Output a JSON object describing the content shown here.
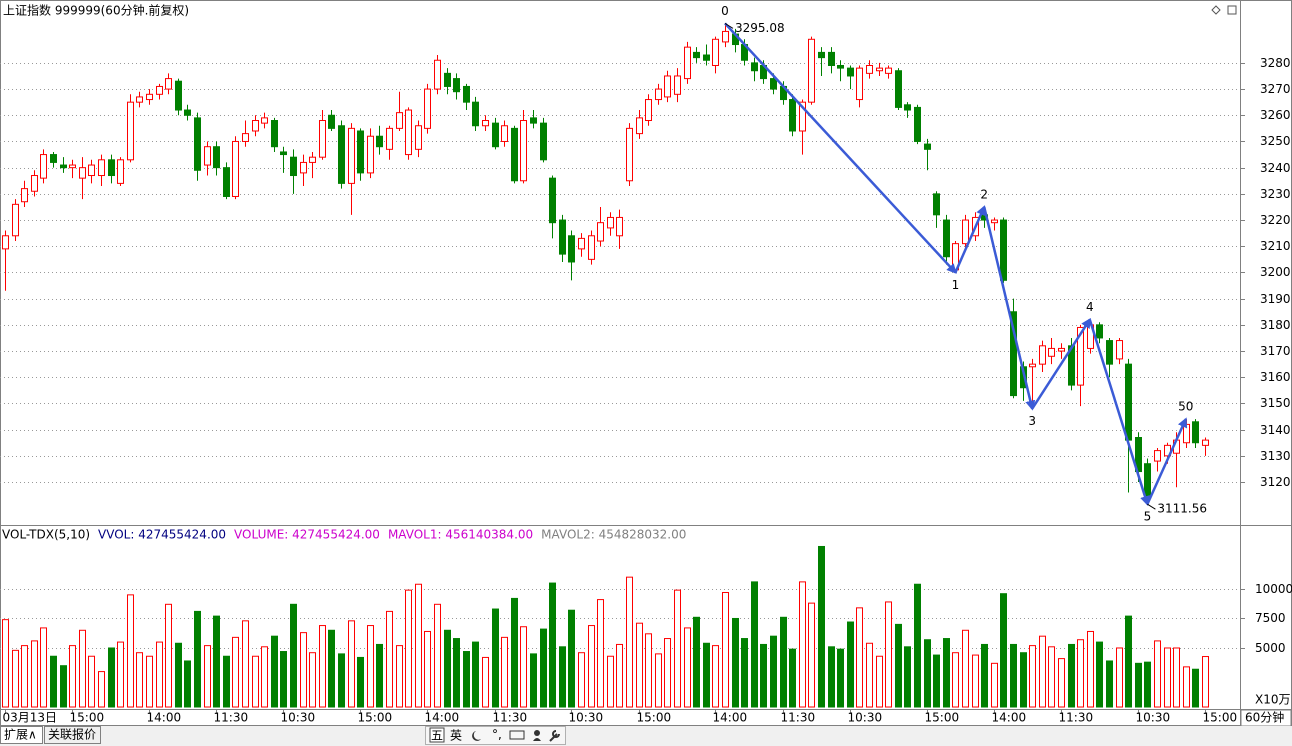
{
  "window": {
    "title": "上证指数 999999(60分钟.前复权)"
  },
  "chart_data": [
    {
      "type": "candlestick",
      "up_color": "#ff0000",
      "down_color": "#008000",
      "wave_color": "#3b5bd6",
      "ylim": [
        3103.6,
        3304
      ],
      "yticks": [
        3120,
        3130,
        3140,
        3150,
        3160,
        3170,
        3180,
        3190,
        3200,
        3210,
        3220,
        3230,
        3240,
        3250,
        3260,
        3270,
        3280
      ],
      "grid": true,
      "ohlc": [
        [
          3209,
          3216,
          3193,
          3214
        ],
        [
          3214,
          3228,
          3212,
          3226
        ],
        [
          3227,
          3235,
          3225,
          3232
        ],
        [
          3231,
          3239,
          3229,
          3237
        ],
        [
          3236,
          3247,
          3234,
          3245
        ],
        [
          3245,
          3246,
          3240,
          3242
        ],
        [
          3241,
          3244,
          3238,
          3240
        ],
        [
          3240,
          3243,
          3236,
          3241
        ],
        [
          3236,
          3244,
          3228,
          3240
        ],
        [
          3237,
          3243,
          3234,
          3241
        ],
        [
          3237,
          3245,
          3233,
          3243
        ],
        [
          3243,
          3245,
          3234,
          3237
        ],
        [
          3234,
          3244,
          3233,
          3243
        ],
        [
          3243,
          3268,
          3242,
          3265
        ],
        [
          3265,
          3269,
          3263,
          3267
        ],
        [
          3266,
          3270,
          3264,
          3268
        ],
        [
          3268,
          3272,
          3266,
          3271
        ],
        [
          3270,
          3276,
          3268,
          3274
        ],
        [
          3273,
          3274,
          3260,
          3262
        ],
        [
          3262,
          3264,
          3258,
          3260
        ],
        [
          3259,
          3261,
          3235,
          3239
        ],
        [
          3241,
          3250,
          3237,
          3248
        ],
        [
          3248,
          3250,
          3237,
          3240
        ],
        [
          3240,
          3242,
          3228,
          3229
        ],
        [
          3229,
          3252,
          3228,
          3250
        ],
        [
          3250,
          3258,
          3248,
          3253
        ],
        [
          3254,
          3260,
          3252,
          3258
        ],
        [
          3257,
          3261,
          3255,
          3259
        ],
        [
          3258,
          3259,
          3246,
          3248
        ],
        [
          3246,
          3248,
          3238,
          3245
        ],
        [
          3244,
          3247,
          3230,
          3237
        ],
        [
          3238,
          3245,
          3233,
          3242
        ],
        [
          3242,
          3246,
          3236,
          3244
        ],
        [
          3244,
          3262,
          3243,
          3258
        ],
        [
          3260,
          3262,
          3254,
          3255
        ],
        [
          3256,
          3258,
          3232,
          3234
        ],
        [
          3234,
          3257,
          3222,
          3255
        ],
        [
          3254,
          3255,
          3235,
          3238
        ],
        [
          3238,
          3255,
          3236,
          3252
        ],
        [
          3252,
          3256,
          3245,
          3248
        ],
        [
          3247,
          3256,
          3243,
          3255
        ],
        [
          3255,
          3269,
          3254,
          3261
        ],
        [
          3245,
          3263,
          3243,
          3262
        ],
        [
          3247,
          3258,
          3244,
          3256
        ],
        [
          3255,
          3272,
          3253,
          3270
        ],
        [
          3270,
          3283,
          3268,
          3281
        ],
        [
          3276,
          3278,
          3268,
          3271
        ],
        [
          3274,
          3276,
          3266,
          3269
        ],
        [
          3271,
          3272,
          3262,
          3265
        ],
        [
          3265,
          3267,
          3254,
          3256
        ],
        [
          3256,
          3260,
          3254,
          3258
        ],
        [
          3257,
          3259,
          3247,
          3248
        ],
        [
          3250,
          3258,
          3248,
          3256
        ],
        [
          3255,
          3256,
          3234,
          3235
        ],
        [
          3235,
          3262,
          3234,
          3258
        ],
        [
          3259,
          3262,
          3255,
          3257
        ],
        [
          3257,
          3259,
          3242,
          3243
        ],
        [
          3236,
          3237,
          3213,
          3219
        ],
        [
          3220,
          3222,
          3204,
          3207
        ],
        [
          3214,
          3216,
          3197,
          3204
        ],
        [
          3209,
          3215,
          3206,
          3213
        ],
        [
          3205,
          3216,
          3203,
          3214
        ],
        [
          3212,
          3225,
          3210,
          3219
        ],
        [
          3217,
          3223,
          3214,
          3221
        ],
        [
          3214,
          3224,
          3209,
          3221
        ],
        [
          3235,
          3257,
          3233,
          3255
        ],
        [
          3253,
          3262,
          3251,
          3259
        ],
        [
          3258,
          3268,
          3256,
          3266
        ],
        [
          3266,
          3272,
          3264,
          3270
        ],
        [
          3267,
          3277,
          3265,
          3275
        ],
        [
          3268,
          3278,
          3265,
          3275
        ],
        [
          3274,
          3288,
          3272,
          3286
        ],
        [
          3284,
          3286,
          3280,
          3282
        ],
        [
          3283,
          3287,
          3279,
          3281
        ],
        [
          3279,
          3290,
          3276,
          3289
        ],
        [
          3288,
          3295.08,
          3286,
          3292
        ],
        [
          3291,
          3293,
          3284,
          3287
        ],
        [
          3287,
          3289,
          3279,
          3281
        ],
        [
          3280,
          3282,
          3273,
          3277
        ],
        [
          3279,
          3281,
          3272,
          3274
        ],
        [
          3274,
          3276,
          3268,
          3270
        ],
        [
          3271,
          3273,
          3264,
          3266
        ],
        [
          3266,
          3268,
          3252,
          3254
        ],
        [
          3254,
          3266,
          3245,
          3265
        ],
        [
          3265,
          3290,
          3264,
          3289
        ],
        [
          3284,
          3286,
          3275,
          3282
        ],
        [
          3284,
          3286,
          3276,
          3279
        ],
        [
          3279,
          3281,
          3273,
          3278
        ],
        [
          3278,
          3279,
          3270,
          3275
        ],
        [
          3266,
          3279,
          3263,
          3278
        ],
        [
          3276,
          3281,
          3274,
          3279
        ],
        [
          3277,
          3280,
          3275,
          3278
        ],
        [
          3276,
          3279,
          3274,
          3278
        ],
        [
          3277,
          3278,
          3262,
          3263
        ],
        [
          3264,
          3265,
          3259,
          3262
        ],
        [
          3263,
          3264,
          3249,
          3250
        ],
        [
          3249,
          3251,
          3239,
          3247
        ],
        [
          3230,
          3231,
          3217,
          3222
        ],
        [
          3220,
          3222,
          3203,
          3206
        ],
        [
          3201,
          3212,
          3200,
          3211
        ],
        [
          3211,
          3222,
          3209,
          3220
        ],
        [
          3214,
          3223,
          3212,
          3221
        ],
        [
          3222,
          3225,
          3217,
          3220
        ],
        [
          3219,
          3221,
          3216,
          3220
        ],
        [
          3220,
          3221,
          3196,
          3197
        ],
        [
          3185,
          3190,
          3152,
          3153
        ],
        [
          3164,
          3166,
          3151,
          3156
        ],
        [
          3164,
          3167,
          3148,
          3165
        ],
        [
          3165,
          3174,
          3162,
          3172
        ],
        [
          3168,
          3175,
          3165,
          3171
        ],
        [
          3170,
          3173,
          3167,
          3171
        ],
        [
          3172,
          3175,
          3155,
          3157
        ],
        [
          3157,
          3180,
          3149,
          3179
        ],
        [
          3171,
          3182,
          3169,
          3180
        ],
        [
          3180,
          3181,
          3173,
          3175
        ],
        [
          3174,
          3175,
          3160,
          3165
        ],
        [
          3167,
          3175,
          3165,
          3174
        ],
        [
          3165,
          3167,
          3116,
          3136
        ],
        [
          3137,
          3139,
          3120,
          3124
        ],
        [
          3127,
          3129,
          3111.56,
          3114
        ],
        [
          3128,
          3133,
          3124,
          3132
        ],
        [
          3130,
          3135,
          3127,
          3134
        ],
        [
          3131,
          3139,
          3118,
          3136
        ],
        [
          3135,
          3144,
          3133,
          3142
        ],
        [
          3143,
          3144,
          3133,
          3135
        ],
        [
          3134,
          3137,
          3130,
          3136
        ]
      ],
      "waves": [
        {
          "label": "0",
          "index": 75,
          "value": 3295.08
        },
        {
          "label": "1",
          "index": 99,
          "value": 3200
        },
        {
          "label": "2",
          "index": 102,
          "value": 3225
        },
        {
          "label": "3",
          "index": 107,
          "value": 3148
        },
        {
          "label": "4",
          "index": 113,
          "value": 3182
        },
        {
          "label": "5",
          "index": 119,
          "value": 3111.56
        },
        {
          "label": "50",
          "index": 123,
          "value": 3144
        }
      ],
      "extreme_labels": [
        {
          "index": 75,
          "value": 3295.08,
          "label": "3295.08"
        },
        {
          "index": 119,
          "value": 3111.56,
          "label": "3111.56"
        }
      ]
    },
    {
      "type": "bar",
      "ylim": [
        0,
        15250
      ],
      "yticks": [
        5000,
        7500,
        10000
      ],
      "grid": true,
      "unit_label": "X10万",
      "legend": [
        {
          "text": "VOL-TDX(5,10)",
          "color": "#000000"
        },
        {
          "text": "VVOL: 427455424.00",
          "color": "#000080"
        },
        {
          "text": "VOLUME: 427455424.00",
          "color": "#cc00cc"
        },
        {
          "text": "MAVOL1: 456140384.00",
          "color": "#cc00cc"
        },
        {
          "text": "MAVOL2: 454828032.00",
          "color": "#808080"
        }
      ],
      "values": [
        7400,
        4800,
        5200,
        5600,
        6700,
        4300,
        3500,
        5200,
        6500,
        4300,
        3000,
        5000,
        5500,
        9500,
        4600,
        4300,
        5500,
        8700,
        5400,
        3900,
        8100,
        5200,
        7700,
        4300,
        5900,
        7300,
        4300,
        5100,
        6000,
        4700,
        8700,
        6300,
        4600,
        6900,
        6500,
        4500,
        7300,
        4200,
        6900,
        5300,
        8100,
        5200,
        9900,
        10400,
        6400,
        8700,
        6500,
        5800,
        4700,
        5500,
        4200,
        8300,
        5900,
        9200,
        6800,
        4500,
        6600,
        10500,
        5100,
        8200,
        4600,
        6900,
        9100,
        4300,
        5300,
        11000,
        7100,
        6200,
        4500,
        5800,
        9900,
        6700,
        7600,
        5400,
        5200,
        9700,
        7500,
        5800,
        10600,
        5300,
        6000,
        7600,
        4900,
        10600,
        8800,
        13600,
        5100,
        4900,
        7200,
        8400,
        5400,
        4300,
        8900,
        7000,
        5100,
        10400,
        5700,
        4400,
        5800,
        4600,
        6500,
        4400,
        5300,
        3700,
        9600,
        5300,
        4600,
        5200,
        6000,
        5100,
        4100,
        5300,
        5700,
        6400,
        5500,
        3900,
        5000,
        7700,
        3700,
        3800,
        5600,
        5000,
        5000,
        3400,
        3200,
        4275
      ],
      "categories": [
        "03月13日",
        null,
        null,
        null,
        null,
        null,
        null,
        "15:00",
        null,
        null,
        null,
        null,
        null,
        null,
        null,
        "14:00",
        null,
        null,
        null,
        null,
        null,
        null,
        "11:30",
        null,
        null,
        null,
        null,
        null,
        null,
        "10:30",
        null,
        null,
        null,
        null,
        null,
        null,
        null,
        "15:00",
        null,
        null,
        null,
        null,
        null,
        null,
        "14:00",
        null,
        null,
        null,
        null,
        null,
        null,
        "11:30",
        null,
        null,
        null,
        null,
        null,
        null,
        null,
        "10:30",
        null,
        null,
        null,
        null,
        null,
        null,
        "15:00",
        null,
        null,
        null,
        null,
        null,
        null,
        null,
        "14:00",
        null,
        null,
        null,
        null,
        null,
        null,
        "11:30",
        null,
        null,
        null,
        null,
        null,
        null,
        "10:30",
        null,
        null,
        null,
        null,
        null,
        null,
        null,
        "15:00",
        null,
        null,
        null,
        null,
        null,
        null,
        "14:00",
        null,
        null,
        null,
        null,
        null,
        null,
        "11:30",
        null,
        null,
        null,
        null,
        null,
        null,
        null,
        "10:30",
        null,
        null,
        null,
        null,
        null,
        null,
        "15:00"
      ]
    }
  ],
  "footer": {
    "tabs": [
      "扩展∧",
      "关联报价"
    ],
    "period": "60分钟",
    "toolbar": [
      "五",
      "英"
    ]
  }
}
